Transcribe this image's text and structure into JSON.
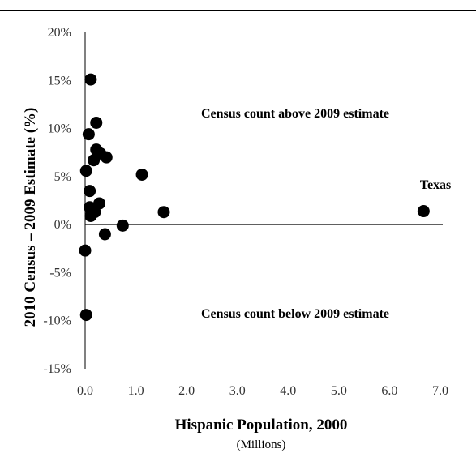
{
  "chart_data": {
    "type": "scatter",
    "xlabel": "Hispanic Population, 2000",
    "xlabel_unit": "(Millions)",
    "ylabel": "2010 Census – 2009 Estimate (%)",
    "xlim": [
      0,
      7
    ],
    "ylim": [
      -15,
      20
    ],
    "x_ticks": [
      "0.0",
      "1.0",
      "2.0",
      "3.0",
      "4.0",
      "5.0",
      "6.0",
      "7.0"
    ],
    "y_ticks": [
      "20%",
      "15%",
      "10%",
      "5%",
      "0%",
      "-5%",
      "-10%",
      "-15%"
    ],
    "grid": false,
    "annotations": {
      "above": "Census count above 2009 estimate",
      "below": "Census count below 2009 estimate",
      "texas": "Texas"
    },
    "points": [
      {
        "x": 0.11,
        "y": 15.1
      },
      {
        "x": 0.22,
        "y": 10.6
      },
      {
        "x": 0.07,
        "y": 9.4
      },
      {
        "x": 0.22,
        "y": 7.8
      },
      {
        "x": 0.3,
        "y": 7.4
      },
      {
        "x": 0.42,
        "y": 7.0
      },
      {
        "x": 0.17,
        "y": 6.7
      },
      {
        "x": 0.02,
        "y": 5.6
      },
      {
        "x": 1.12,
        "y": 5.2
      },
      {
        "x": 0.09,
        "y": 3.5
      },
      {
        "x": 0.28,
        "y": 2.2
      },
      {
        "x": 0.09,
        "y": 1.8
      },
      {
        "x": 0.19,
        "y": 1.3
      },
      {
        "x": 1.55,
        "y": 1.3
      },
      {
        "x": 0.11,
        "y": 0.9
      },
      {
        "x": 6.67,
        "y": 1.4
      },
      {
        "x": 0.74,
        "y": -0.1
      },
      {
        "x": 0.39,
        "y": -1.0
      },
      {
        "x": 0.0,
        "y": -2.7
      },
      {
        "x": 0.02,
        "y": -9.4
      }
    ]
  }
}
